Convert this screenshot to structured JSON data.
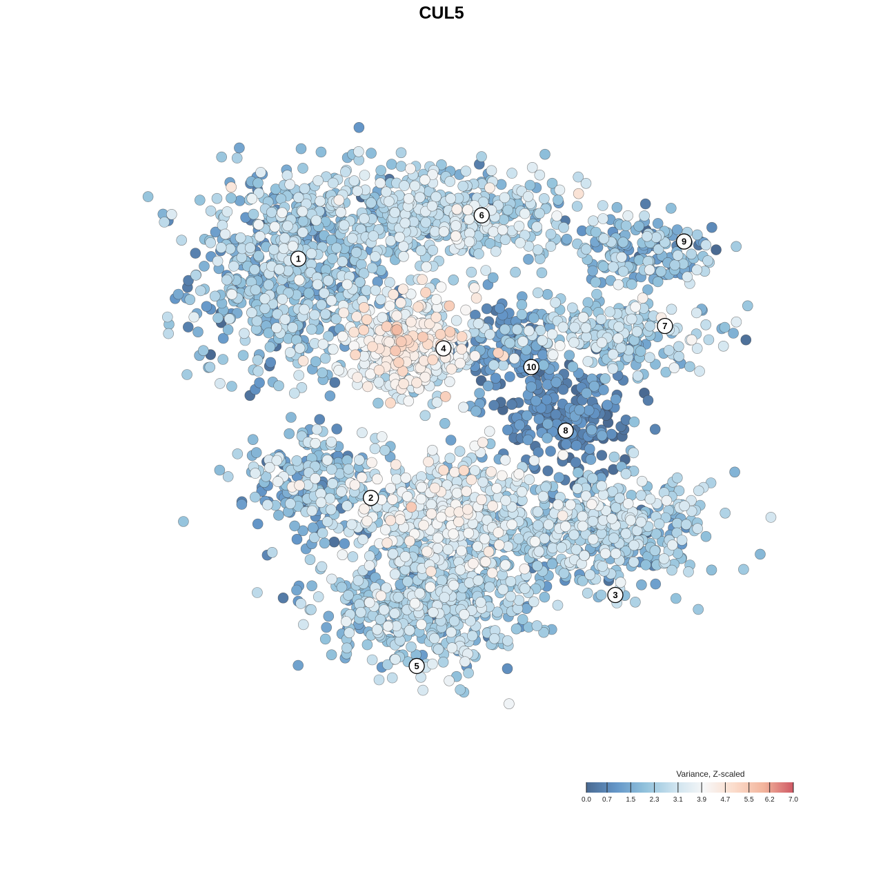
{
  "chart_data": {
    "type": "scatter",
    "title": "CUL5",
    "xlabel": "",
    "ylabel": "",
    "grid": false,
    "axes_visible": false,
    "x_range": [
      -42,
      42
    ],
    "y_range": [
      -42,
      42
    ],
    "color_scale": {
      "title": "Variance, Z-scaled",
      "min": 0.0,
      "max": 7.0,
      "ticks": [
        "0.0",
        "0.7",
        "1.5",
        "2.3",
        "3.1",
        "3.9",
        "4.7",
        "5.5",
        "6.2",
        "7.0"
      ],
      "tick_values": [
        0.0,
        0.7,
        1.5,
        2.3,
        3.1,
        3.9,
        4.7,
        5.5,
        6.2,
        7.0
      ],
      "colors": [
        "#4a6a92",
        "#6496c8",
        "#92c2dc",
        "#cde3ef",
        "#f7f7f7",
        "#fbdccb",
        "#f2b49c",
        "#cf5964"
      ],
      "legend_position": "bottom-right"
    },
    "clusters": [
      {
        "label": "1",
        "x": -22,
        "y": 22,
        "sx": 6.5,
        "sy": 7.0,
        "n": 650,
        "mean": 1.9,
        "sd": 0.8
      },
      {
        "label": "6",
        "x": -3,
        "y": 30,
        "sx": 9.5,
        "sy": 3.2,
        "n": 520,
        "mean": 2.5,
        "sd": 0.7
      },
      {
        "label": "9",
        "x": 24,
        "y": 25,
        "sx": 5.0,
        "sy": 2.2,
        "n": 160,
        "mean": 1.7,
        "sd": 0.7
      },
      {
        "label": "7",
        "x": 20,
        "y": 14,
        "sx": 7.5,
        "sy": 2.6,
        "n": 230,
        "mean": 2.4,
        "sd": 0.7
      },
      {
        "label": "4",
        "x": -6,
        "y": 12,
        "sx": 4.2,
        "sy": 3.6,
        "n": 380,
        "mean": 3.6,
        "sd": 0.8
      },
      {
        "label": "10",
        "x": 6,
        "y": 12,
        "sx": 3.2,
        "sy": 2.8,
        "n": 110,
        "mean": 0.9,
        "sd": 0.5
      },
      {
        "label": "8",
        "x": 14,
        "y": 3,
        "sx": 4.5,
        "sy": 3.5,
        "n": 230,
        "mean": 0.6,
        "sd": 0.5
      },
      {
        "label": "2",
        "x": -18,
        "y": -6,
        "sx": 5.0,
        "sy": 3.5,
        "n": 230,
        "mean": 1.8,
        "sd": 0.9
      },
      {
        "label": "3",
        "x": 18,
        "y": -12,
        "sx": 7.0,
        "sy": 4.0,
        "n": 470,
        "mean": 2.3,
        "sd": 0.7
      },
      {
        "label": "5",
        "x": -4,
        "y": -22,
        "sx": 7.0,
        "sy": 4.2,
        "n": 560,
        "mean": 2.3,
        "sd": 0.7
      },
      {
        "label": "",
        "x": -2,
        "y": -10,
        "sx": 5.5,
        "sy": 4.0,
        "n": 380,
        "mean": 3.1,
        "sd": 0.8
      }
    ],
    "label_positions": [
      {
        "label": "1",
        "x": -21.0,
        "y": 24.0
      },
      {
        "label": "6",
        "x": 3.0,
        "y": 29.8
      },
      {
        "label": "9",
        "x": 29.5,
        "y": 26.3
      },
      {
        "label": "7",
        "x": 27.0,
        "y": 15.0
      },
      {
        "label": "4",
        "x": -2.0,
        "y": 12.0
      },
      {
        "label": "10",
        "x": 9.5,
        "y": 9.5
      },
      {
        "label": "8",
        "x": 14.0,
        "y": 1.0
      },
      {
        "label": "2",
        "x": -11.5,
        "y": -8.0
      },
      {
        "label": "3",
        "x": 20.5,
        "y": -21.0
      },
      {
        "label": "5",
        "x": -5.5,
        "y": -30.5
      }
    ]
  }
}
